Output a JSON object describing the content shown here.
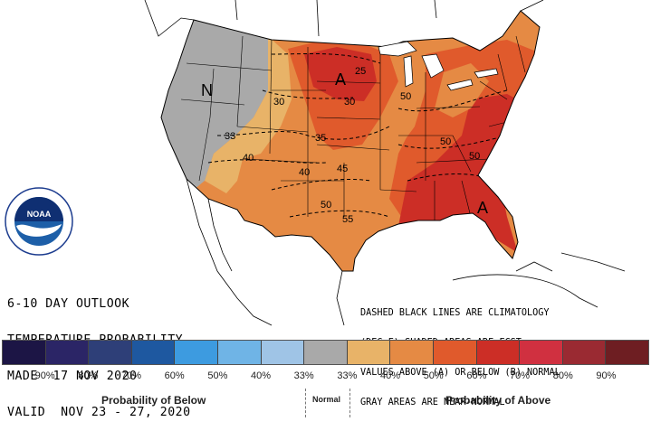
{
  "title_lines": [
    "6-10 DAY OUTLOOK",
    "TEMPERATURE PROBABILITY",
    "MADE  17 NOV 2020",
    "VALID  NOV 23 - 27, 2020"
  ],
  "notes_lines": [
    "DASHED BLACK LINES ARE CLIMATOLOGY",
    "(DEG F) SHADED AREAS ARE FCST",
    "VALUES ABOVE (A) OR BELOW (B) NORMAL",
    "GRAY AREAS ARE NEAR-NORMAL"
  ],
  "legend": {
    "swatch_colors": [
      "#1c1545",
      "#2b2566",
      "#2e3f78",
      "#1e58a0",
      "#3d9be0",
      "#6fb4e6",
      "#9fc4e6",
      "#a9a9a9",
      "#e8b368",
      "#e58a44",
      "#e05a2c",
      "#cc2e26",
      "#d03040",
      "#9a2a32",
      "#6e1e22"
    ],
    "ticks": [
      "90%",
      "80%",
      "70%",
      "60%",
      "50%",
      "40%",
      "33%",
      "33%",
      "40%",
      "50%",
      "60%",
      "70%",
      "80%",
      "90%"
    ],
    "below_caption": "Probability of Below",
    "normal_caption": "Normal",
    "above_caption": "Probability of Above"
  },
  "map": {
    "category_labels": [
      "N",
      "A",
      "A"
    ],
    "contour_labels": [
      "25",
      "30",
      "30",
      "33",
      "35",
      "40",
      "40",
      "45",
      "50",
      "50",
      "50",
      "50",
      "55"
    ],
    "logo": {
      "name": "noaa-logo",
      "text": "NOAA",
      "ring_text": "NATIONAL OCEANIC AND ATMOSPHERIC ADMINISTRATION · U.S. DEPARTMENT OF COMMERCE"
    },
    "colors": {
      "near_normal": "#a9a9a9",
      "above_33_40": "#e8b368",
      "above_40_50": "#e58a44",
      "above_50_60": "#e05a2c",
      "above_60_70": "#cc2e26"
    }
  }
}
